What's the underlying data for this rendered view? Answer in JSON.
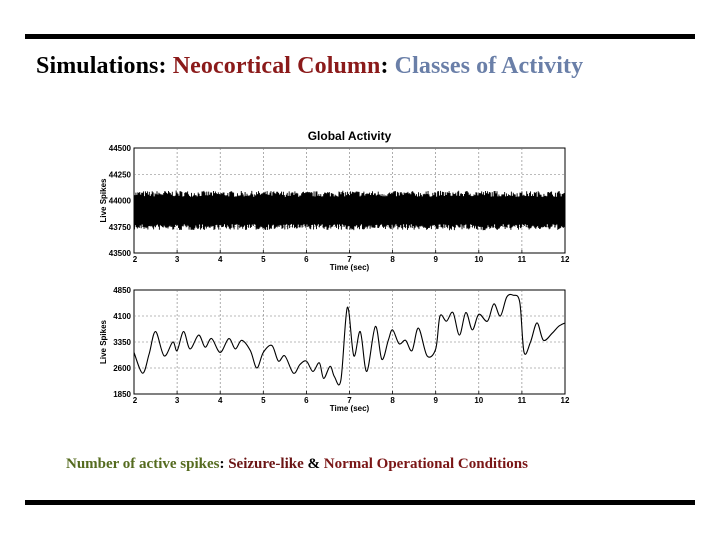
{
  "slide": {
    "title_part1": "Simulations",
    "title_sep1": ": ",
    "title_part2": "Neocortical Column",
    "title_sep2": ": ",
    "title_part3": "Classes of Activity",
    "caption_part1": "Number of active spikes",
    "caption_sep": ": ",
    "caption_part2": "Seizure-like",
    "caption_amp": " & ",
    "caption_part3": "Normal Operational Conditions"
  },
  "colors": {
    "title_black": "#000000",
    "title_darkred": "#8b1a1a",
    "title_steelblue": "#6a7fa8",
    "caption_olive": "#556b1f",
    "caption_maroon": "#6b1414",
    "caption_darkred": "#7a1616"
  },
  "chart_data": [
    {
      "type": "line",
      "title": "Global Activity",
      "xlabel": "Time (sec)",
      "ylabel": "Live Spikes",
      "xlim": [
        2,
        12
      ],
      "ylim": [
        43500,
        44500
      ],
      "xticks": [
        2,
        3,
        4,
        5,
        6,
        7,
        8,
        9,
        10,
        11,
        12
      ],
      "yticks": [
        43500,
        43750,
        44000,
        44250,
        44500
      ],
      "grid": true,
      "series": [
        {
          "style": "dense oscillation",
          "x": [
            2.0,
            3.0,
            4.0,
            5.0,
            6.0,
            7.0,
            8.0,
            9.0,
            10.0,
            11.0,
            12.0
          ],
          "y_min": [
            43720,
            43715,
            43720,
            43718,
            43722,
            43716,
            43720,
            43718,
            43715,
            43720,
            43718
          ],
          "y_max": [
            44090,
            44095,
            44090,
            44092,
            44088,
            44094,
            44090,
            44092,
            44095,
            44090,
            44092
          ]
        }
      ]
    },
    {
      "type": "line",
      "title": "",
      "xlabel": "Time (sec)",
      "ylabel": "Live Spikes",
      "xlim": [
        2,
        12
      ],
      "ylim": [
        1850,
        4850
      ],
      "xticks": [
        2,
        3,
        4,
        5,
        6,
        7,
        8,
        9,
        10,
        11,
        12
      ],
      "yticks": [
        1850,
        2600,
        3350,
        4100,
        4850
      ],
      "grid": true,
      "series": [
        {
          "x": [
            2.0,
            2.2,
            2.35,
            2.5,
            2.7,
            2.9,
            3.0,
            3.15,
            3.3,
            3.5,
            3.65,
            3.8,
            4.0,
            4.2,
            4.35,
            4.5,
            4.7,
            4.85,
            5.0,
            5.2,
            5.35,
            5.5,
            5.7,
            5.85,
            6.0,
            6.15,
            6.3,
            6.4,
            6.55,
            6.65,
            6.8,
            6.95,
            7.1,
            7.25,
            7.4,
            7.6,
            7.75,
            7.9,
            8.0,
            8.15,
            8.3,
            8.45,
            8.6,
            8.8,
            9.0,
            9.1,
            9.25,
            9.4,
            9.55,
            9.7,
            9.85,
            10.0,
            10.2,
            10.35,
            10.5,
            10.65,
            10.8,
            10.95,
            11.05,
            11.2,
            11.35,
            11.5,
            11.7,
            11.85,
            12.0
          ],
          "y": [
            3050,
            2450,
            3000,
            3650,
            2950,
            3350,
            3100,
            3650,
            3150,
            3550,
            3200,
            3450,
            3050,
            3450,
            3150,
            3400,
            3100,
            2600,
            3050,
            3250,
            2800,
            2950,
            2450,
            2700,
            2800,
            2500,
            2750,
            2300,
            2650,
            2350,
            2250,
            4350,
            2950,
            3650,
            2500,
            3800,
            2850,
            3400,
            3700,
            3300,
            3400,
            3100,
            3750,
            2950,
            3150,
            4100,
            3950,
            4200,
            3550,
            4200,
            3700,
            4150,
            3950,
            4450,
            4100,
            4650,
            4700,
            4500,
            3050,
            3350,
            3900,
            3400,
            3600,
            3800,
            3900
          ]
        }
      ]
    }
  ]
}
